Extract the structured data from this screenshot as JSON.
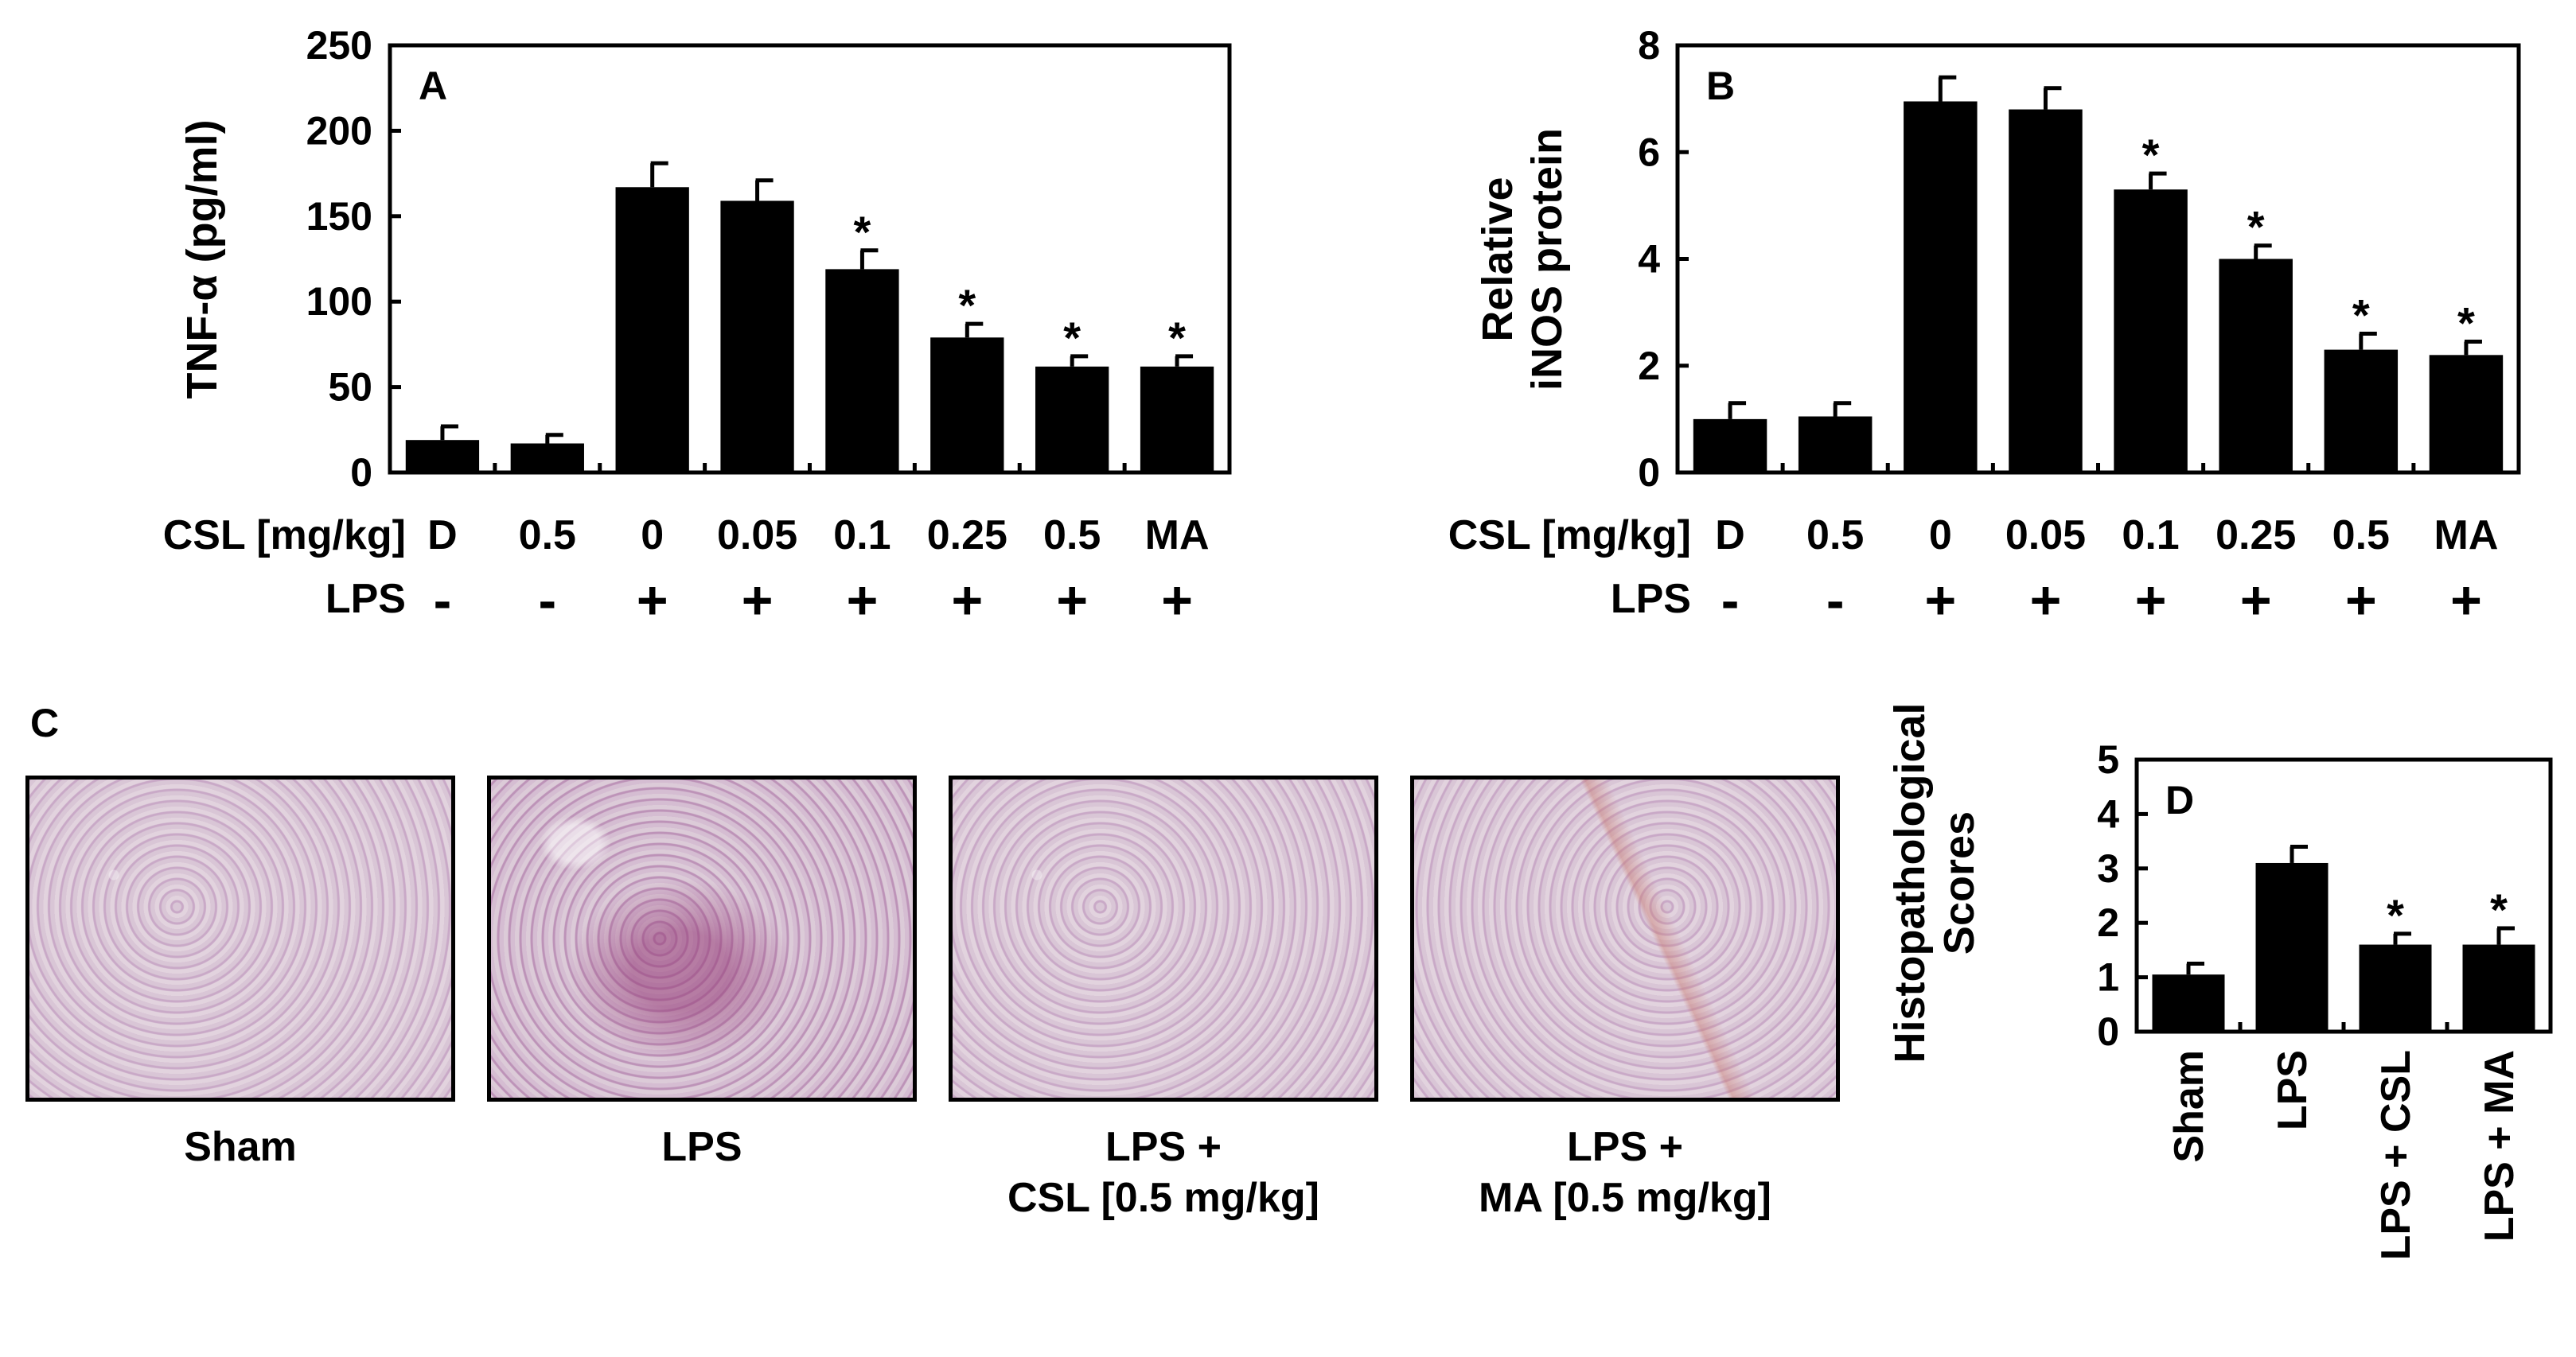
{
  "chart_data": [
    {
      "panel": "A",
      "type": "bar",
      "ylabel": "TNF-α (pg/ml)",
      "ylim": [
        0,
        250
      ],
      "yticks": [
        0,
        50,
        100,
        150,
        200,
        250
      ],
      "row_labels": [
        "CSL [mg/kg]",
        "LPS"
      ],
      "categories": [
        "D",
        "0.5",
        "0",
        "0.05",
        "0.1",
        "0.25",
        "0.5",
        "MA"
      ],
      "lps": [
        "-",
        "-",
        "+",
        "+",
        "+",
        "+",
        "+",
        "+"
      ],
      "values": [
        19,
        17,
        167,
        159,
        119,
        79,
        62,
        62
      ],
      "errors": [
        8,
        5,
        14,
        12,
        11,
        8,
        6,
        6
      ],
      "significant": [
        false,
        false,
        false,
        false,
        true,
        true,
        true,
        true
      ],
      "marker": "*"
    },
    {
      "panel": "B",
      "type": "bar",
      "ylabel_lines": [
        "Relative",
        "iNOS protein"
      ],
      "ylim": [
        0,
        8
      ],
      "yticks": [
        0,
        2,
        4,
        6,
        8
      ],
      "row_labels": [
        "CSL [mg/kg]",
        "LPS"
      ],
      "categories": [
        "D",
        "0.5",
        "0",
        "0.05",
        "0.1",
        "0.25",
        "0.5",
        "MA"
      ],
      "lps": [
        "-",
        "-",
        "+",
        "+",
        "+",
        "+",
        "+",
        "+"
      ],
      "values": [
        1.0,
        1.05,
        6.95,
        6.8,
        5.3,
        4.0,
        2.3,
        2.2
      ],
      "errors": [
        0.3,
        0.25,
        0.45,
        0.4,
        0.3,
        0.25,
        0.3,
        0.25
      ],
      "significant": [
        false,
        false,
        false,
        false,
        true,
        true,
        true,
        true
      ],
      "marker": "*"
    },
    {
      "panel": "D",
      "type": "bar",
      "ylabel_lines": [
        "Histopathological",
        "Scores"
      ],
      "ylim": [
        0,
        5
      ],
      "yticks": [
        0,
        1,
        2,
        3,
        4,
        5
      ],
      "categories": [
        "Sham",
        "LPS",
        "LPS + CSL",
        "LPS + MA"
      ],
      "values": [
        1.05,
        3.1,
        1.6,
        1.6
      ],
      "errors": [
        0.2,
        0.3,
        0.2,
        0.3
      ],
      "significant": [
        false,
        false,
        true,
        true
      ],
      "marker": "*"
    }
  ],
  "panel_c": {
    "letter": "C",
    "images": [
      {
        "label_lines": [
          "Sham"
        ]
      },
      {
        "label_lines": [
          "LPS"
        ]
      },
      {
        "label_lines": [
          "LPS +",
          "CSL [0.5 mg/kg]"
        ]
      },
      {
        "label_lines": [
          "LPS +",
          "MA [0.5 mg/kg]"
        ]
      }
    ]
  }
}
